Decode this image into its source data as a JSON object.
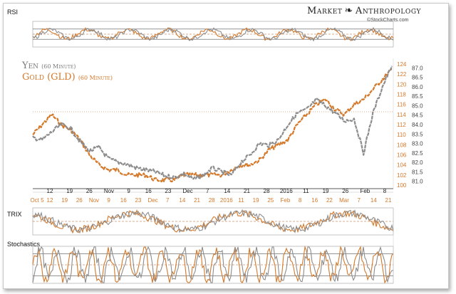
{
  "brand": {
    "left": "Market",
    "right": "Anthropology",
    "symbol": "❧",
    "sub": "©StockCharts.com"
  },
  "panels": {
    "rsi": "RSI",
    "trix": "TRIX",
    "stoch": "Stochastics"
  },
  "legend": {
    "yen_name": "Yen",
    "yen_freq": "(60 Minute)",
    "gold_name": "Gold (GLD)",
    "gold_freq": "(60 Minute)"
  },
  "colors": {
    "yen": "#8c8c8c",
    "gold": "#d4782a",
    "ref": "#b05a20"
  },
  "chart_data": {
    "type": "line",
    "title": "Yen vs Gold (GLD) 60 Minute",
    "yaxis_yen": {
      "ticks": [
        "87.0",
        "86.5",
        "86.0",
        "85.5",
        "85.0",
        "84.5",
        "84.0",
        "83.5",
        "83.0",
        "82.5",
        "82.0",
        "81.5",
        "81.0"
      ],
      "ylim": [
        80.8,
        87.2
      ]
    },
    "yaxis_gold": {
      "ticks": [
        "124",
        "122",
        "120",
        "118",
        "116",
        "114",
        "112",
        "110",
        "108",
        "106",
        "104",
        "102",
        "100"
      ],
      "ylim": [
        100,
        124
      ]
    },
    "xaxis_yen_labels": [
      "12",
      "19",
      "26",
      "Nov",
      "9",
      "16",
      "23",
      "Dec",
      "7",
      "14",
      "21",
      "28",
      "2016",
      "11",
      "19",
      "26",
      "Feb",
      "8"
    ],
    "xaxis_gold_labels": [
      "Oct 5",
      "12",
      "19",
      "26",
      "Nov",
      "9",
      "16",
      "23",
      "Dec",
      "7",
      "14",
      "21",
      "28",
      "2016",
      "11",
      "19",
      "25",
      "Feb",
      "8",
      "16",
      "22",
      "Mar",
      "7",
      "14",
      "21"
    ],
    "series": [
      {
        "name": "Yen (60 Minute)",
        "values": [
          83.3,
          83.2,
          83.6,
          84.0,
          83.8,
          83.1,
          82.6,
          82.8,
          82.2,
          82.0,
          81.9,
          81.7,
          81.6,
          81.5,
          81.3,
          81.2,
          81.4,
          81.1,
          81.3,
          81.7,
          81.5,
          81.3,
          82.0,
          82.4,
          83.0,
          82.9,
          83.2,
          84.0,
          84.6,
          84.8,
          85.3,
          85.0,
          84.6,
          84.2,
          84.3,
          82.5,
          84.6,
          86.0,
          87.1
        ]
      },
      {
        "name": "Gold (GLD) (60 Minute)",
        "values": [
          110,
          112,
          114,
          112,
          111,
          109,
          106,
          104,
          103,
          103,
          102,
          102,
          102,
          101,
          101,
          101,
          102,
          102,
          102,
          102,
          102,
          103,
          104,
          104,
          105,
          107,
          108,
          109,
          112,
          114,
          116,
          117,
          115,
          114,
          116,
          117,
          119,
          121,
          123
        ]
      }
    ],
    "rsi": {
      "levels": [
        70,
        50,
        30
      ]
    },
    "trix": {
      "levels": [
        0
      ]
    },
    "stochastics": {
      "levels": [
        80,
        50,
        20
      ]
    }
  }
}
